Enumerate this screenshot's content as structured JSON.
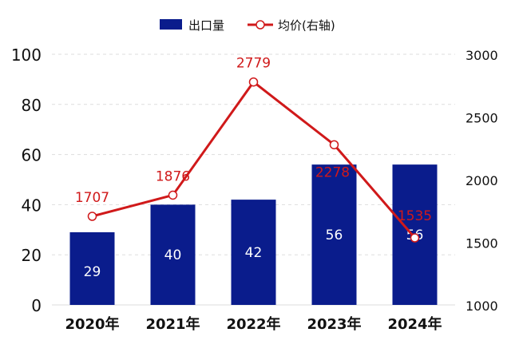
{
  "chart_data": {
    "type": "bar+line",
    "categories": [
      "2020年",
      "2021年",
      "2022年",
      "2023年",
      "2024年"
    ],
    "series": [
      {
        "name": "出口量",
        "type": "bar",
        "axis": "left",
        "values": [
          29,
          40,
          42,
          56,
          56
        ],
        "color": "#0a1c8c"
      },
      {
        "name": "均价(右轴)",
        "type": "line",
        "axis": "right",
        "values": [
          1707,
          1876,
          2779,
          2278,
          1535
        ],
        "color": "#d0191a"
      }
    ],
    "left_axis": {
      "ylim": [
        0,
        100
      ],
      "ticks": [
        0,
        20,
        40,
        60,
        80,
        100
      ]
    },
    "right_axis": {
      "ylim": [
        1000,
        3000
      ],
      "ticks": [
        1000,
        1500,
        2000,
        2500,
        3000
      ]
    },
    "legend": {
      "placement": "top-center"
    },
    "grid": true
  }
}
